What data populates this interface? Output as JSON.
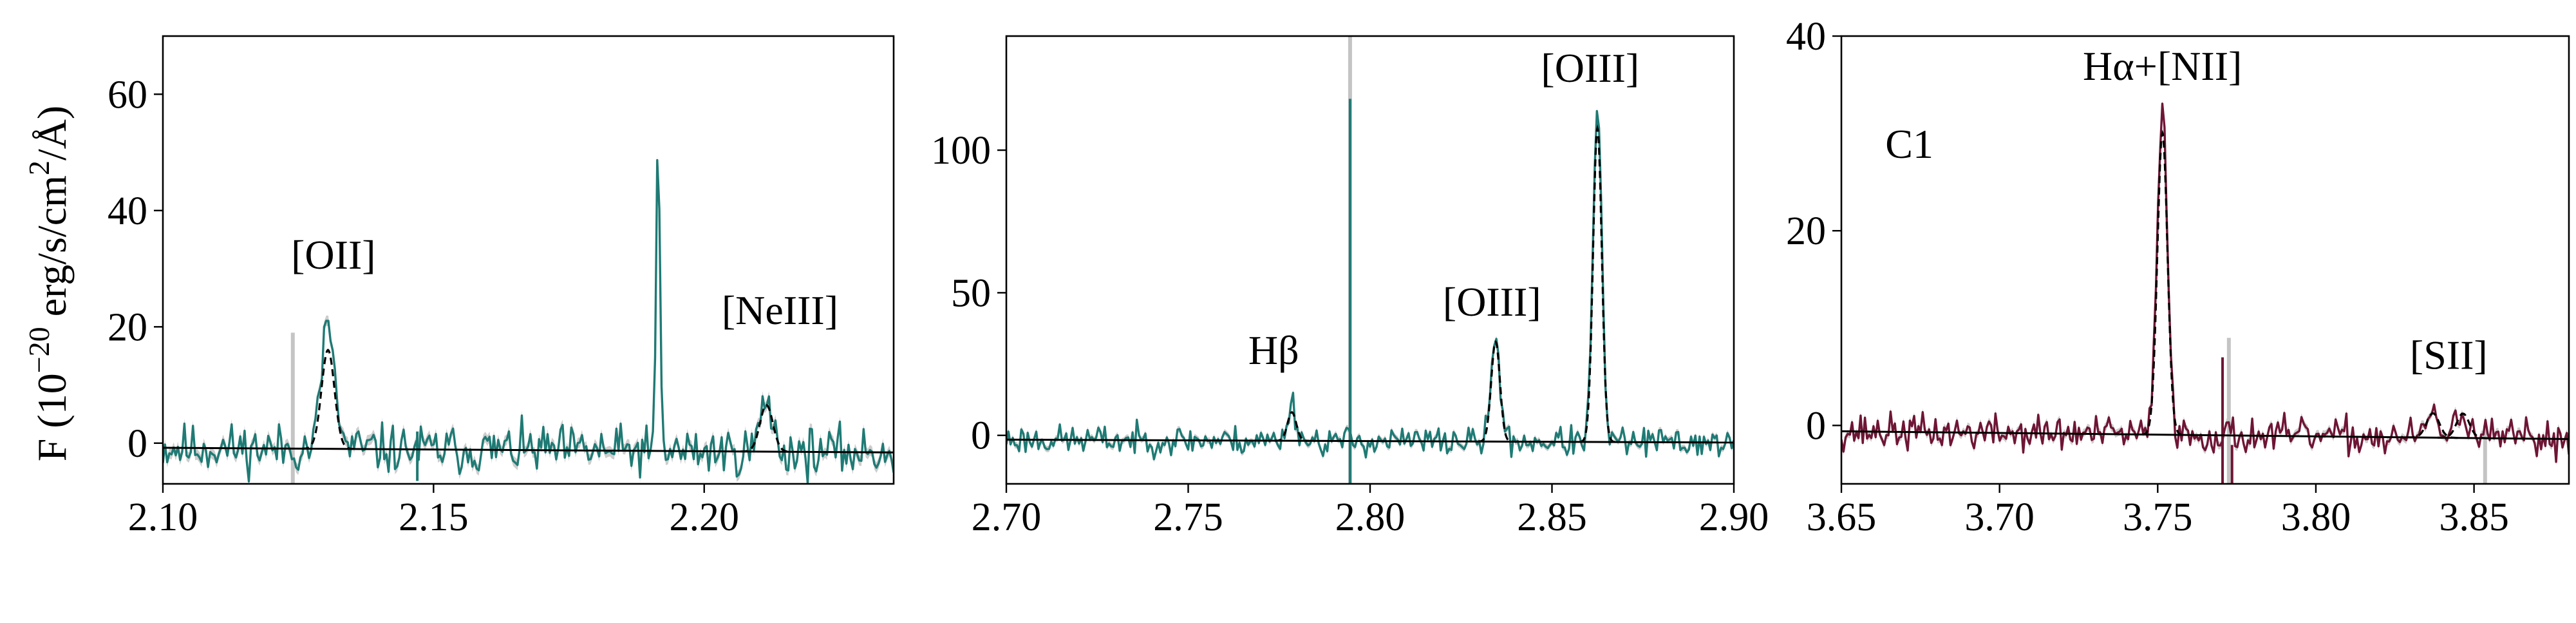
{
  "figure": {
    "ylabel_prefix": "F (10",
    "ylabel_exp": "−20",
    "ylabel_unit": " erg/s/cm",
    "ylabel_exp2": "2",
    "ylabel_suffix": "/Å)"
  },
  "chart_data": [
    {
      "type": "line",
      "xlim": [
        2.1,
        2.235
      ],
      "ylim": [
        -7,
        70
      ],
      "xticks": [
        2.1,
        2.15,
        2.2
      ],
      "xtick_labels": [
        "2.10",
        "2.15",
        "2.20"
      ],
      "yticks": [
        0,
        20,
        40,
        60
      ],
      "ytick_labels": [
        "0",
        "20",
        "40",
        "60"
      ],
      "color": "#1f7a74",
      "fit_color": "#000000",
      "noise_seed": 11,
      "noise_amp": 2.6,
      "continuum": [
        [
          2.1,
          -0.8
        ],
        [
          2.235,
          -1.6
        ]
      ],
      "lines": [
        {
          "center": 2.1305,
          "flux": 22,
          "sigma": 0.0012,
          "fit": 17
        },
        {
          "center": 2.1915,
          "flux": 50,
          "sigma": 0.00035,
          "fit": 0
        },
        {
          "center": 2.2115,
          "flux": 8,
          "sigma": 0.0012,
          "fit": 8
        }
      ],
      "gray_spikes": [
        {
          "x": 2.124,
          "top": 19,
          "bottom": -7
        }
      ],
      "line_spikes": [
        {
          "x": 2.147,
          "top": 2,
          "bottom": -6.5
        }
      ],
      "annotations": [
        {
          "x": 2.1315,
          "y": 30,
          "text": "[OII]"
        },
        {
          "x": 2.214,
          "y": 20.5,
          "text": "[NeIII]"
        }
      ]
    },
    {
      "type": "line",
      "xlim": [
        2.7,
        2.9
      ],
      "ylim": [
        -17,
        140
      ],
      "xticks": [
        2.7,
        2.75,
        2.8,
        2.85,
        2.9
      ],
      "xtick_labels": [
        "2.70",
        "2.75",
        "2.80",
        "2.85",
        "2.90"
      ],
      "yticks": [
        0,
        50,
        100
      ],
      "ytick_labels": [
        "0",
        "50",
        "100"
      ],
      "color": "#1f7a74",
      "fit_color": "#000000",
      "noise_seed": 23,
      "noise_amp": 3.2,
      "continuum": [
        [
          2.7,
          -1.5
        ],
        [
          2.9,
          -2.5
        ]
      ],
      "lines": [
        {
          "center": 2.7785,
          "flux": 13,
          "sigma": 0.0012,
          "fit": 10
        },
        {
          "center": 2.8345,
          "flux": 36,
          "sigma": 0.0012,
          "fit": 35
        },
        {
          "center": 2.8625,
          "flux": 116,
          "sigma": 0.0012,
          "fit": 110
        }
      ],
      "gray_spikes": [
        {
          "x": 2.7945,
          "top": 140,
          "bottom": -17
        }
      ],
      "line_spikes": [
        {
          "x": 2.7945,
          "top": 118,
          "bottom": -17
        }
      ],
      "annotations": [
        {
          "x": 2.7735,
          "y": 25,
          "text": "Hβ"
        },
        {
          "x": 2.8335,
          "y": 42,
          "text": "[OIII]"
        },
        {
          "x": 2.8605,
          "y": 124,
          "text": "[OIII]"
        }
      ]
    },
    {
      "type": "line",
      "xlim": [
        3.65,
        3.88
      ],
      "ylim": [
        -6,
        40
      ],
      "xticks": [
        3.65,
        3.7,
        3.75,
        3.8,
        3.85
      ],
      "xtick_labels": [
        "3.65",
        "3.70",
        "3.75",
        "3.80",
        "3.85"
      ],
      "yticks": [
        0,
        20,
        40
      ],
      "ytick_labels": [
        "0",
        "20",
        "40"
      ],
      "color": "#6e1535",
      "fit_color": "#000000",
      "noise_seed": 37,
      "noise_amp": 1.15,
      "continuum": [
        [
          3.65,
          -0.6
        ],
        [
          3.88,
          -1.4
        ]
      ],
      "lines": [
        {
          "center": 3.7515,
          "flux": 34,
          "sigma": 0.0016,
          "fit": 31
        },
        {
          "center": 3.837,
          "flux": 2.5,
          "sigma": 0.002,
          "fit": 2.5
        },
        {
          "center": 3.8465,
          "flux": 2.5,
          "sigma": 0.002,
          "fit": 2.5
        }
      ],
      "gray_spikes": [
        {
          "x": 3.7725,
          "top": 9,
          "bottom": -6
        },
        {
          "x": 3.8535,
          "top": 0,
          "bottom": -6
        }
      ],
      "line_spikes": [
        {
          "x": 3.7705,
          "top": 7,
          "bottom": -6
        },
        {
          "x": 3.7735,
          "top": -2,
          "bottom": -6
        }
      ],
      "annotations": [
        {
          "x": 3.7515,
          "y": 35.5,
          "text": "Hα+[NII]"
        },
        {
          "x": 3.842,
          "y": 5.8,
          "text": "[SII]"
        },
        {
          "x": 3.6715,
          "y": 27.5,
          "text": "C1"
        }
      ]
    }
  ]
}
